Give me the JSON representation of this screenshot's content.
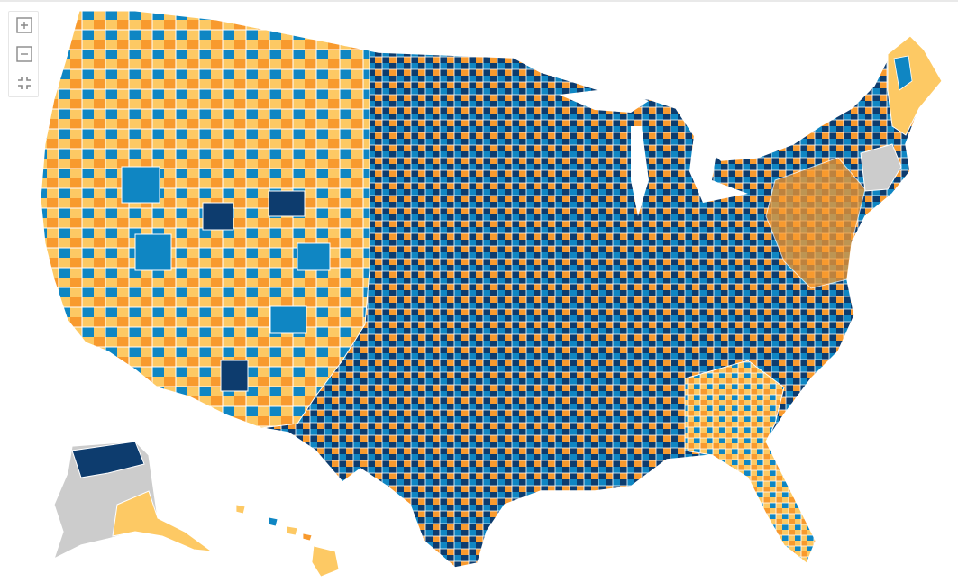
{
  "map": {
    "kind": "choropleth-county-map",
    "region": "United States",
    "projection": "albers-usa",
    "legend": "none",
    "palette": {
      "dark_blue": "#0d3c6e",
      "medium_blue": "#0f86c3",
      "light_orange": "#fdc964",
      "orange": "#f89a2e",
      "no_data": "#cccccc",
      "border": "#ffffff"
    },
    "category_order": [
      "dark_blue",
      "medium_blue",
      "light_orange",
      "orange"
    ],
    "dominant_category_by_area": {
      "pacific_northwest": "light_orange",
      "california": "light_orange",
      "great_basin": "orange",
      "southwest": "orange",
      "northern_rockies": "light_orange",
      "northern_plains": "dark_blue",
      "central_plains": "dark_blue",
      "texas": "medium_blue",
      "upper_midwest": "dark_blue",
      "great_lakes": "dark_blue",
      "ohio_valley": "dark_blue",
      "deep_south": "dark_blue",
      "southeast_coast": "light_orange",
      "florida": "light_orange",
      "mid_atlantic": "orange",
      "new_england": "no_data",
      "maine": "light_orange",
      "alaska": "no_data",
      "alaska_north_slope": "dark_blue",
      "hawaii": "light_orange"
    }
  },
  "controls": {
    "zoom_in_icon": "plus-square-icon",
    "zoom_out_icon": "minus-square-icon",
    "reset_icon": "collapse-arrows-icon"
  }
}
